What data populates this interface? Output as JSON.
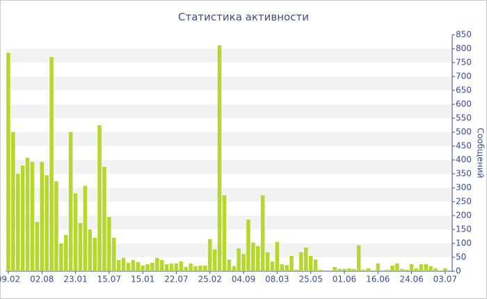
{
  "chart_data": {
    "type": "bar",
    "title": "Статистика активности",
    "y_label": "Сообщений",
    "categories": [
      "09.02",
      null,
      null,
      null,
      null,
      null,
      null,
      "02.08",
      null,
      null,
      null,
      null,
      null,
      null,
      "23.01",
      null,
      null,
      null,
      null,
      null,
      null,
      "15.07",
      null,
      null,
      null,
      null,
      null,
      null,
      "15.01",
      null,
      null,
      null,
      null,
      null,
      null,
      "22.07",
      null,
      null,
      null,
      null,
      null,
      null,
      "25.02",
      null,
      null,
      null,
      null,
      null,
      null,
      "04.09",
      null,
      null,
      null,
      null,
      null,
      null,
      "08.03",
      null,
      null,
      null,
      null,
      null,
      null,
      "25.05",
      null,
      null,
      null,
      null,
      null,
      null,
      "01.06",
      null,
      null,
      null,
      null,
      null,
      null,
      "16.06",
      null,
      null,
      null,
      null,
      null,
      null,
      "24.06",
      null,
      null,
      null,
      null,
      null,
      null,
      "03.07"
    ],
    "values": [
      785,
      500,
      350,
      380,
      408,
      393,
      177,
      393,
      345,
      770,
      323,
      100,
      130,
      500,
      280,
      173,
      307,
      150,
      120,
      525,
      375,
      195,
      120,
      40,
      48,
      30,
      40,
      33,
      20,
      25,
      30,
      48,
      40,
      25,
      27,
      28,
      35,
      15,
      28,
      18,
      20,
      20,
      115,
      78,
      812,
      273,
      42,
      18,
      82,
      62,
      186,
      103,
      90,
      273,
      68,
      35,
      105,
      25,
      22,
      55,
      5,
      68,
      85,
      55,
      42,
      5,
      3,
      3,
      15,
      8,
      8,
      10,
      8,
      93,
      5,
      10,
      3,
      28,
      3,
      5,
      20,
      28,
      8,
      5,
      25,
      10,
      25,
      25,
      18,
      10,
      3,
      10
    ],
    "color": "#b6d72d",
    "ylim": [
      0,
      850
    ],
    "yticks": [
      0,
      50,
      100,
      150,
      200,
      250,
      300,
      350,
      400,
      450,
      500,
      550,
      600,
      650,
      700,
      750,
      800,
      850
    ],
    "grid": true
  }
}
